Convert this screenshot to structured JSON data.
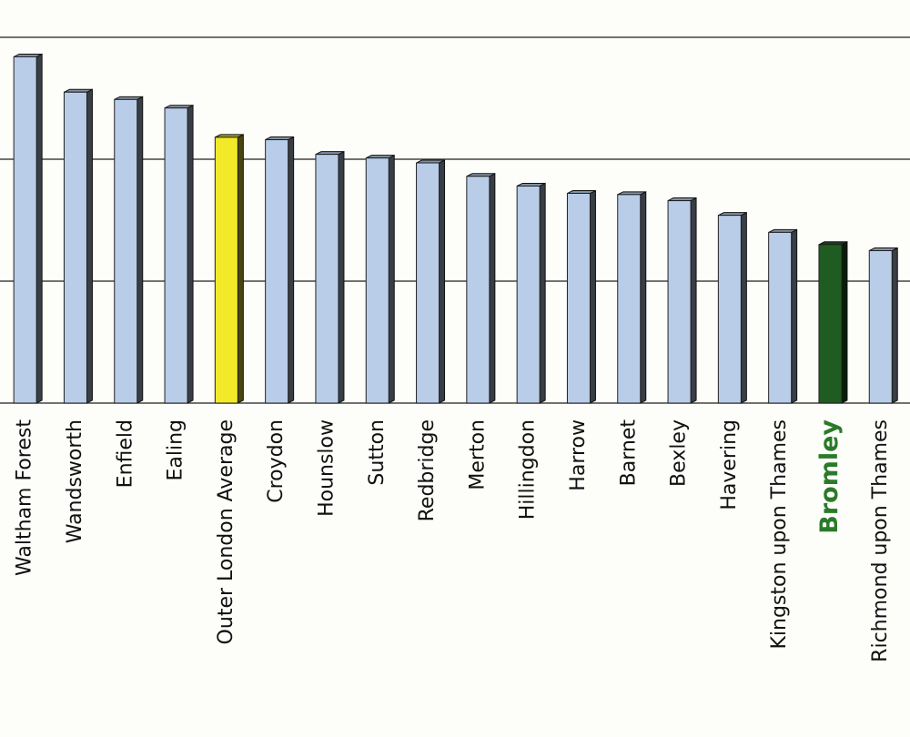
{
  "chart_data": {
    "type": "bar",
    "categories": [
      "Waltham Forest",
      "Wandsworth",
      "Enfield",
      "Ealing",
      "Outer London Average",
      "Croydon",
      "Hounslow",
      "Sutton",
      "Redbridge",
      "Merton",
      "Hillingdon",
      "Harrow",
      "Barnet",
      "Bexley",
      "Havering",
      "Kingston upon Thames",
      "Bromley",
      "Richmond upon Thames"
    ],
    "values": [
      2.84,
      2.55,
      2.49,
      2.42,
      2.18,
      2.16,
      2.04,
      2.01,
      1.97,
      1.86,
      1.78,
      1.72,
      1.71,
      1.66,
      1.54,
      1.4,
      1.3,
      1.25
    ],
    "colors": [
      "#b9cde9",
      "#b9cde9",
      "#b9cde9",
      "#b9cde9",
      "#f2e928",
      "#b9cde9",
      "#b9cde9",
      "#b9cde9",
      "#b9cde9",
      "#b9cde9",
      "#b9cde9",
      "#b9cde9",
      "#b9cde9",
      "#b9cde9",
      "#b9cde9",
      "#b9cde9",
      "#1f5c22",
      "#b9cde9"
    ],
    "highlight_label": {
      "index": 16,
      "color": "#2a7a2a"
    },
    "ylim": [
      0,
      3.3
    ],
    "grid_lines": [
      0,
      1,
      2,
      3
    ],
    "grid": true
  }
}
